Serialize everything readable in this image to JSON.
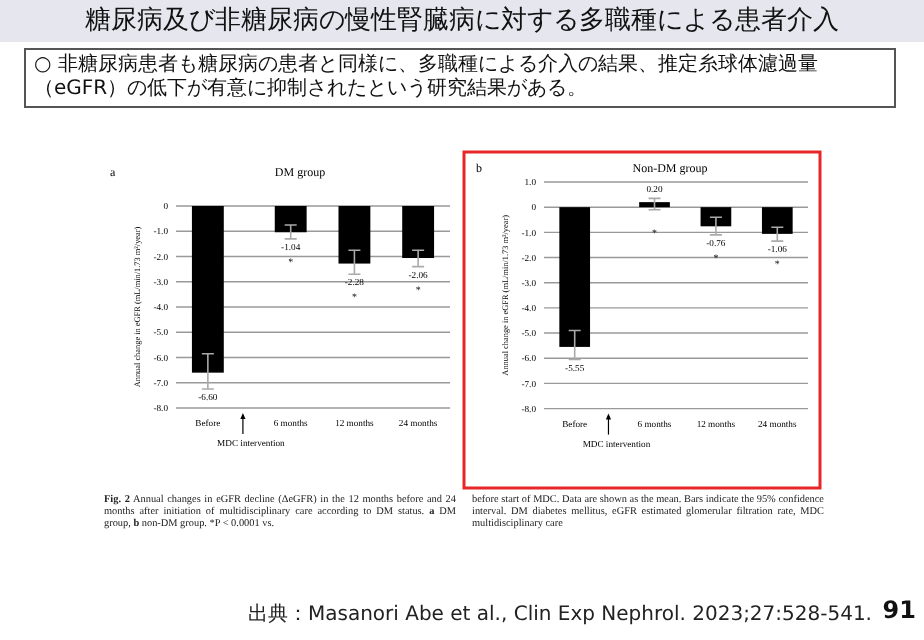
{
  "chart_data": [
    {
      "type": "bar",
      "title": "DM group",
      "ylabel": "Annual change in eGFR (mL/min/1.73 m²/year)",
      "color": "#000000",
      "grid": "y",
      "categories": [
        "Before",
        "6 months",
        "12 months",
        "24 months"
      ],
      "values": [
        -6.6,
        -1.04,
        -2.28,
        -2.06
      ],
      "value_labels": [
        "-6.60",
        "-1.04",
        "-2.28",
        "-2.06"
      ],
      "errors": [
        [
          -7.25,
          -5.85
        ],
        [
          -1.3,
          -0.75
        ],
        [
          -2.7,
          -1.75
        ],
        [
          -2.4,
          -1.75
        ]
      ],
      "ylim": [
        -8,
        0
      ],
      "yticks": [
        {
          "value": 0,
          "label": "0"
        },
        {
          "value": -1,
          "label": "-1.0"
        },
        {
          "value": -2,
          "label": "-2.0"
        },
        {
          "value": -3,
          "label": "-3.0"
        },
        {
          "value": -4,
          "label": "-4.0"
        },
        {
          "value": -5,
          "label": "-5.0"
        },
        {
          "value": -6,
          "label": "-6.0"
        },
        {
          "value": -7,
          "label": "-7.0"
        },
        {
          "value": -8,
          "label": "-8.0"
        }
      ],
      "annotations": [
        "糖尿病及び非糖尿病の慢性腎臓病に対する多職種による患者介入",
        "○ 非糖尿病患者も糖尿病の患者と同様に、多職種による介入の結果、推定糸球体濾過量（eGFR）の低下が有意に抑制されたという研究結果がある。",
        "a",
        "MDC intervention",
        "**Fig. 2** Annual changes in eGFR decline (ΔeGFR) in the 12 months before and 24 months after initiation of multidisciplinary care according to DM status. **a** DM group, **b** non-DM group. *P < 0.0001 vs.",
        "*",
        "*",
        "*"
      ]
    },
    {
      "type": "bar",
      "title": "Non-DM group",
      "ylabel": "Annual change in eGFR (mL/min/1.73 m²/year)",
      "color": "#000000",
      "grid": "y",
      "categories": [
        "Before",
        "6 months",
        "12 months",
        "24 months"
      ],
      "values": [
        -5.55,
        0.2,
        -0.76,
        -1.06
      ],
      "value_labels": [
        "-5.55",
        "0.20",
        "-0.76",
        "-1.06"
      ],
      "errors": [
        [
          -6.05,
          -4.9
        ],
        [
          -0.1,
          0.35
        ],
        [
          -1.1,
          -0.4
        ],
        [
          -1.35,
          -0.8
        ]
      ],
      "ylim": [
        -8,
        1
      ],
      "yticks": [
        {
          "value": 1,
          "label": "1.0"
        },
        {
          "value": 0,
          "label": "0"
        },
        {
          "value": -1,
          "label": "-1.0"
        },
        {
          "value": -2,
          "label": "-2.0"
        },
        {
          "value": -3,
          "label": "-3.0"
        },
        {
          "value": -4,
          "label": "-4.0"
        },
        {
          "value": -5,
          "label": "-5.0"
        },
        {
          "value": -6,
          "label": "-6.0"
        },
        {
          "value": -7,
          "label": "-7.0"
        },
        {
          "value": -8,
          "label": "-8.0"
        }
      ],
      "annotations": [
        "b",
        "MDC intervention",
        "before start of MDC. Data are shown as the mean. Bars indicate the 95% confidence interval. DM diabetes mellitus, eGFR estimated glomerular filtration rate, MDC multidisciplinary care",
        "出典：Masanori Abe et al., Clin Exp Nephrol. 2023;27:528-541.",
        "91",
        "*",
        "*",
        "*"
      ]
    }
  ]
}
